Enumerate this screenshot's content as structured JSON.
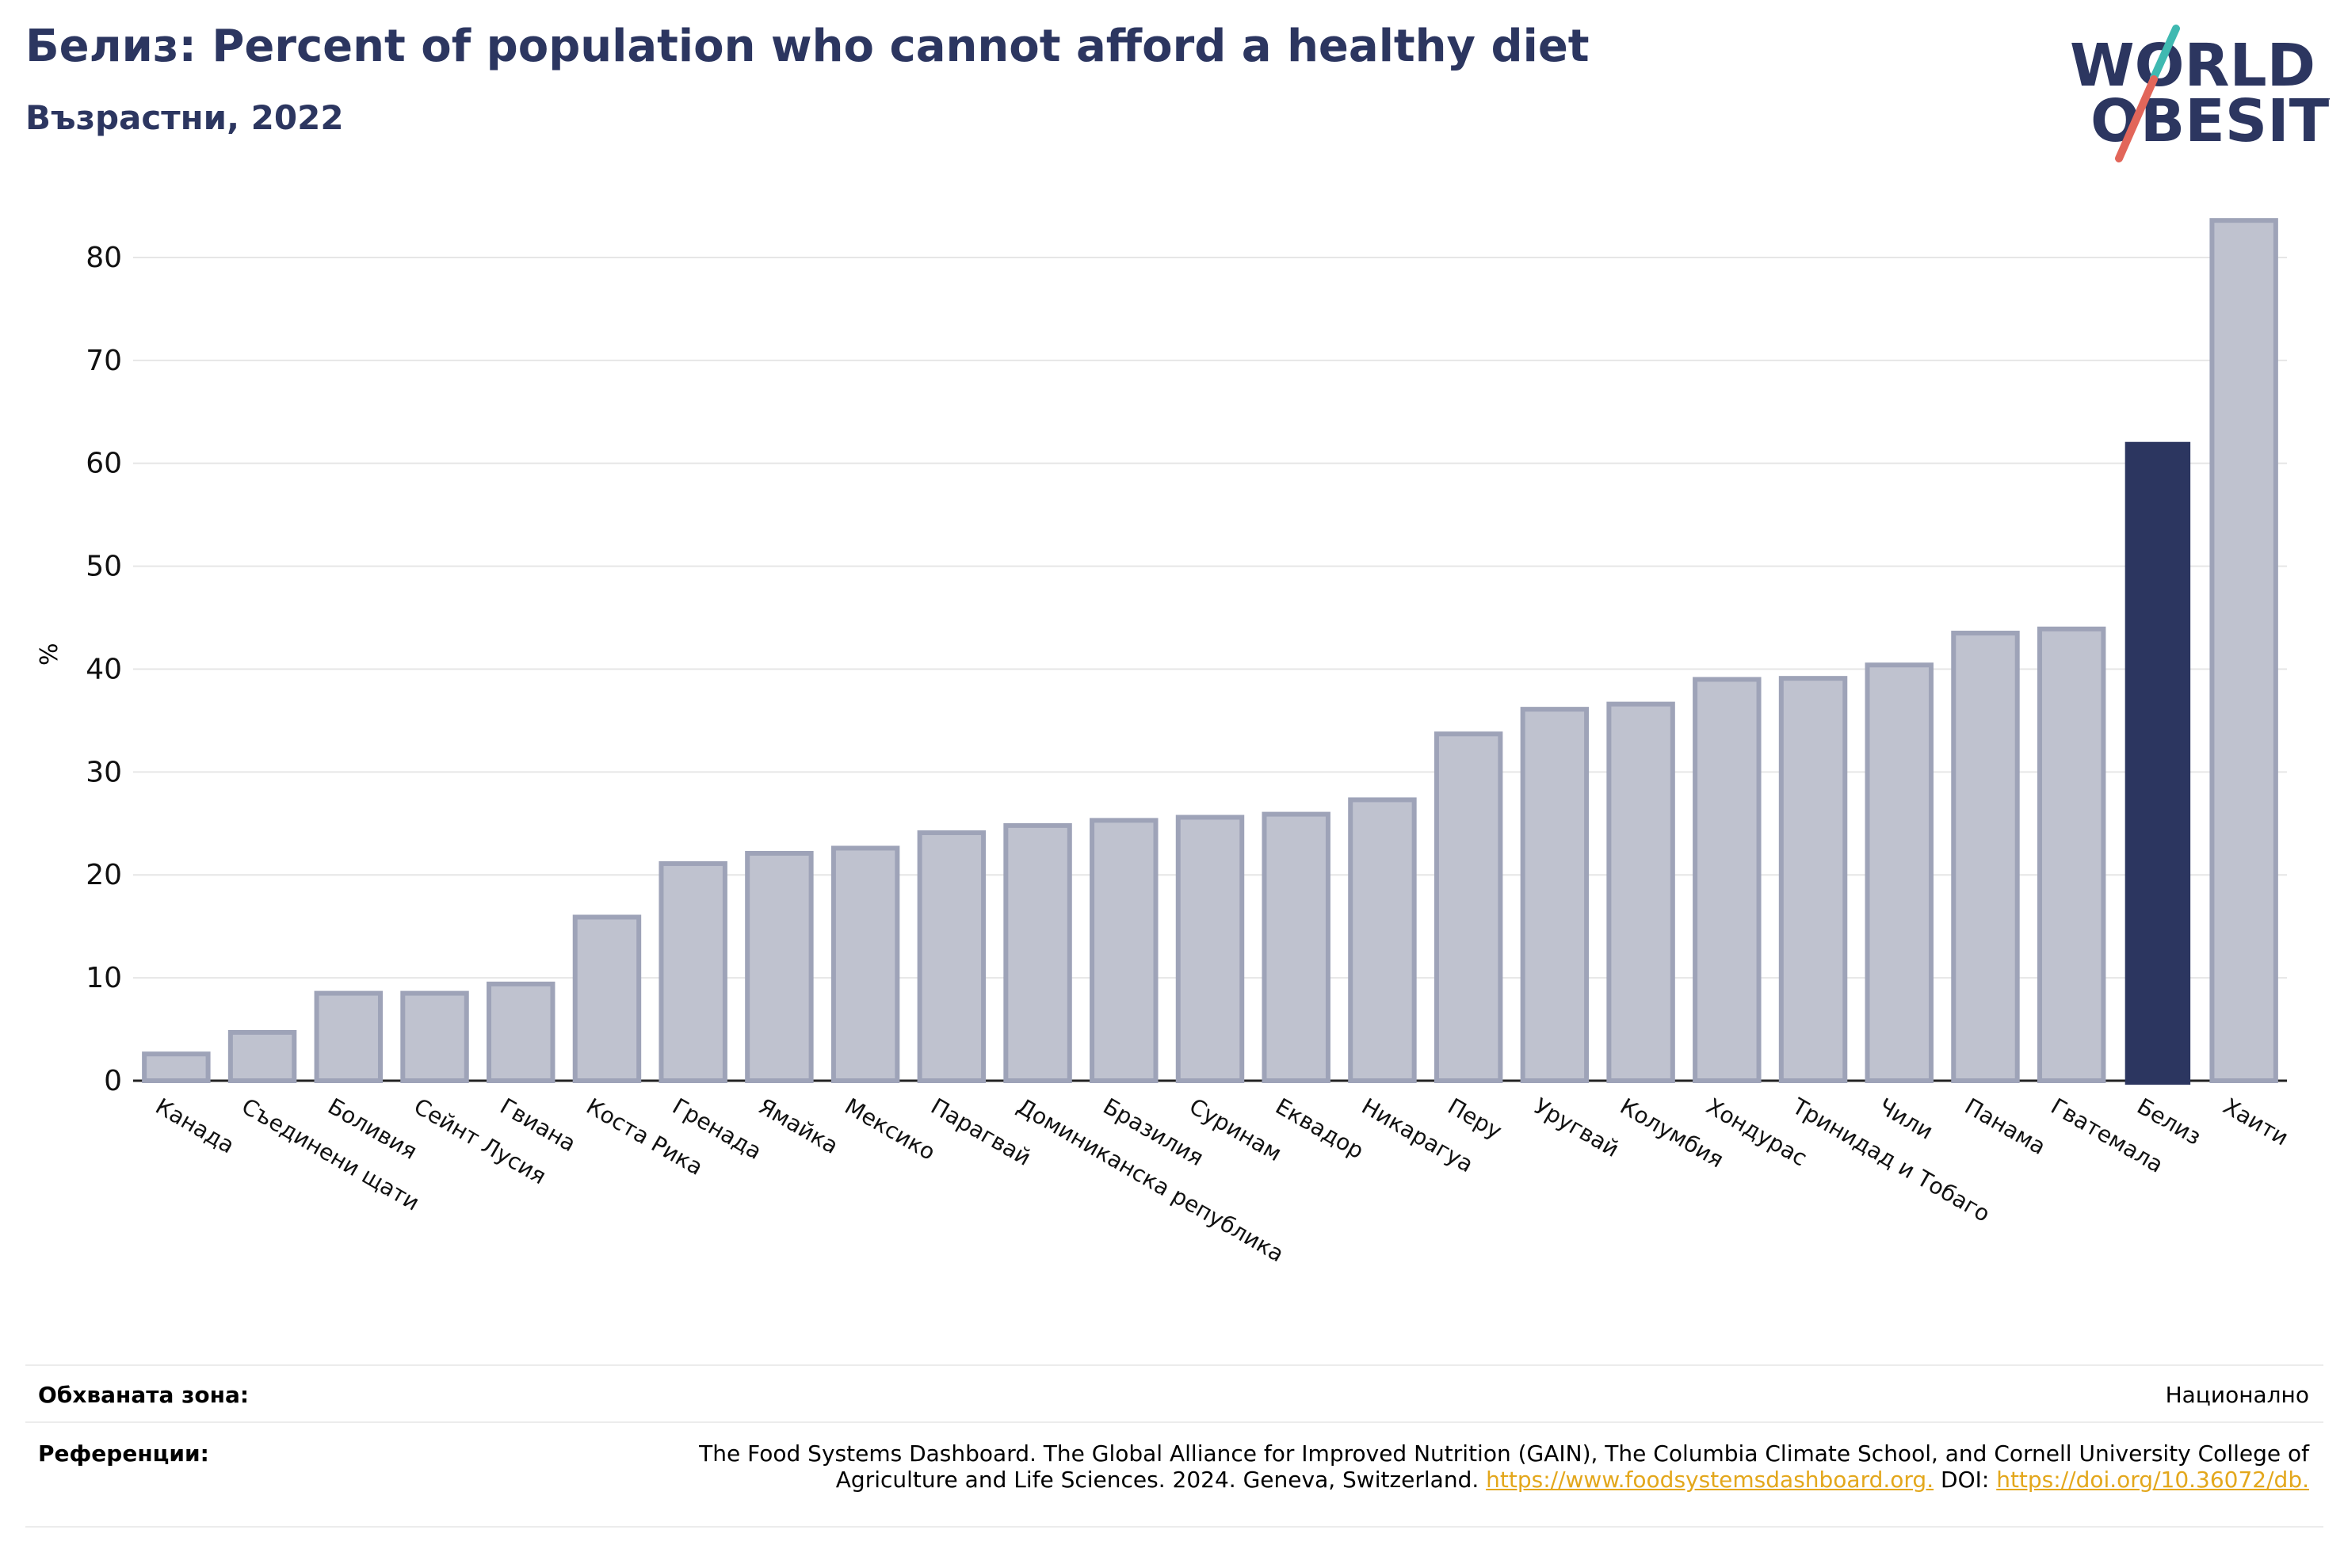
{
  "header": {
    "title": "Белиз: Percent of population who cannot afford a healthy diet",
    "subtitle": "Възрастни, 2022"
  },
  "logo": {
    "line1": "WORLD",
    "line2": "OBESITY"
  },
  "colors": {
    "title": "#2c3660",
    "bar_fill": "#bfc2cf",
    "bar_stroke": "#9ea3b8",
    "highlight": "#2c3660",
    "grid": "#e6e6e6",
    "link": "#e3a71c",
    "logo_teal": "#3fb9b1",
    "logo_red": "#e2665a"
  },
  "chart_data": {
    "type": "bar",
    "title": "Белиз: Percent of population who cannot afford a healthy diet",
    "subtitle": "Възрастни, 2022",
    "xlabel": "",
    "ylabel": "%",
    "ylim": [
      0,
      85
    ],
    "yticks": [
      0,
      10,
      20,
      30,
      40,
      50,
      60,
      70,
      80
    ],
    "grid": true,
    "highlight": "Белиз",
    "categories": [
      "Канада",
      "Съединени щати",
      "Боливия",
      "Сейнт Лусия",
      "Гвиана",
      "Коста Рика",
      "Гренада",
      "Ямайка",
      "Мексико",
      "Парагвай",
      "Доминиканска република",
      "Бразилия",
      "Суринам",
      "Еквадор",
      "Никарагуа",
      "Перу",
      "Уругвай",
      "Колумбия",
      "Хондурас",
      "Тринидад и Тобаго",
      "Чили",
      "Панама",
      "Гватемала",
      "Белиз",
      "Хаити"
    ],
    "values": [
      2.6,
      4.7,
      8.5,
      8.5,
      9.4,
      15.9,
      21.1,
      22.1,
      22.6,
      24.1,
      24.8,
      25.3,
      25.6,
      25.9,
      27.3,
      33.7,
      36.1,
      36.6,
      39.0,
      39.1,
      40.4,
      43.5,
      43.9,
      62.0,
      83.6
    ]
  },
  "footer": {
    "coverage_label": "Обхваната зона:",
    "coverage_value": "Национално",
    "references_label": "Референции:",
    "references_text": "The Food Systems Dashboard. The Global Alliance for Improved Nutrition (GAIN), The Columbia Climate School, and Cornell University College of Agriculture and Life Sciences. 2024. Geneva, Switzerland. ",
    "references_link1": "https://www.foodsystemsdashboard.org.",
    "references_doi": " DOI: ",
    "references_link2": "https://doi.org/10.36072/db."
  }
}
